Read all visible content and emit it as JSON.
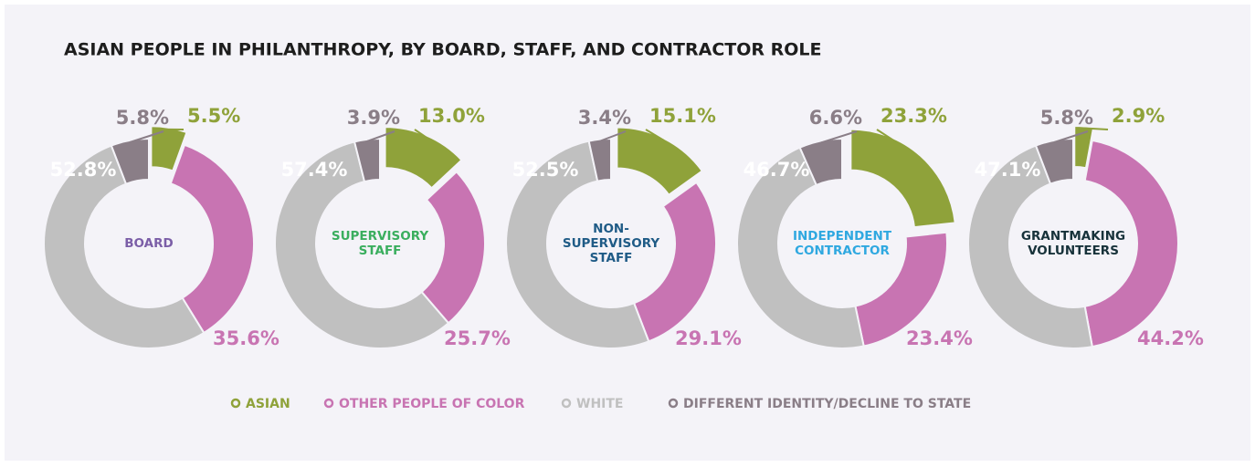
{
  "title": "ASIAN PEOPLE IN PHILANTHROPY, BY BOARD, STAFF, AND CONTRACTOR ROLE",
  "chart_data": [
    {
      "type": "pie",
      "center_label": [
        "BOARD"
      ],
      "label_color": "#7b5ea7",
      "categories": [
        "ASIAN",
        "OTHER PEOPLE OF COLOR",
        "WHITE",
        "DIFFERENT IDENTITY/DECLINE TO STATE"
      ],
      "values": [
        5.5,
        35.6,
        52.8,
        5.8
      ],
      "value_labels": [
        "5.5%",
        "35.6%",
        "52.8%",
        "5.8%"
      ],
      "colors": [
        "#8fa23a",
        "#c874b2",
        "#c0c0c0",
        "#8a7e87"
      ]
    },
    {
      "type": "pie",
      "center_label": [
        "SUPERVISORY",
        "STAFF"
      ],
      "label_color": "#3aae5e",
      "categories": [
        "ASIAN",
        "OTHER PEOPLE OF COLOR",
        "WHITE",
        "DIFFERENT IDENTITY/DECLINE TO STATE"
      ],
      "values": [
        13.0,
        25.7,
        57.4,
        3.9
      ],
      "value_labels": [
        "13.0%",
        "25.7%",
        "57.4%",
        "3.9%"
      ],
      "colors": [
        "#8fa23a",
        "#c874b2",
        "#c0c0c0",
        "#8a7e87"
      ]
    },
    {
      "type": "pie",
      "center_label": [
        "NON-",
        "SUPERVISORY",
        "STAFF"
      ],
      "label_color": "#1f5b86",
      "categories": [
        "ASIAN",
        "OTHER PEOPLE OF COLOR",
        "WHITE",
        "DIFFERENT IDENTITY/DECLINE TO STATE"
      ],
      "values": [
        15.1,
        29.1,
        52.5,
        3.4
      ],
      "value_labels": [
        "15.1%",
        "29.1%",
        "52.5%",
        "3.4%"
      ],
      "colors": [
        "#8fa23a",
        "#c874b2",
        "#c0c0c0",
        "#8a7e87"
      ]
    },
    {
      "type": "pie",
      "center_label": [
        "INDEPENDENT",
        "CONTRACTOR"
      ],
      "label_color": "#2fa8e0",
      "categories": [
        "ASIAN",
        "OTHER PEOPLE OF COLOR",
        "WHITE",
        "DIFFERENT IDENTITY/DECLINE TO STATE"
      ],
      "values": [
        23.3,
        23.4,
        46.7,
        6.6
      ],
      "value_labels": [
        "23.3%",
        "23.4%",
        "46.7%",
        "6.6%"
      ],
      "colors": [
        "#8fa23a",
        "#c874b2",
        "#c0c0c0",
        "#8a7e87"
      ]
    },
    {
      "type": "pie",
      "center_label": [
        "GRANTMAKING",
        "VOLUNTEERS"
      ],
      "label_color": "#17323a",
      "categories": [
        "ASIAN",
        "OTHER PEOPLE OF COLOR",
        "WHITE",
        "DIFFERENT IDENTITY/DECLINE TO STATE"
      ],
      "values": [
        2.9,
        44.2,
        47.1,
        5.8
      ],
      "value_labels": [
        "2.9%",
        "44.2%",
        "47.1%",
        "5.8%"
      ],
      "colors": [
        "#8fa23a",
        "#c874b2",
        "#c0c0c0",
        "#8a7e87"
      ]
    }
  ]
}
